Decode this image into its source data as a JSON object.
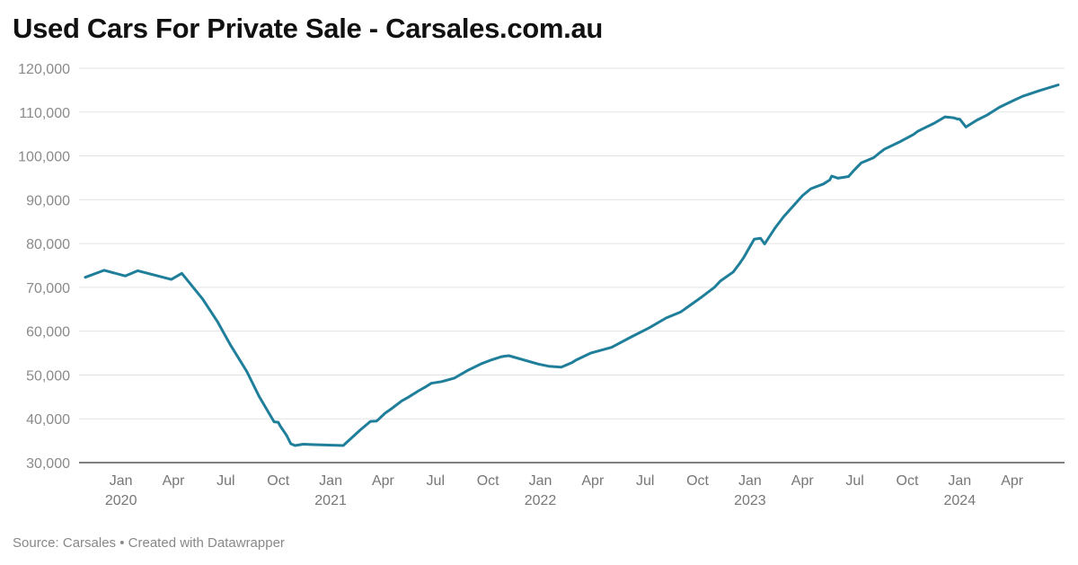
{
  "chart_data": {
    "type": "line",
    "title": "Used Cars For Private Sale - Carsales.com.au",
    "footer": {
      "source": "Source: Carsales",
      "separator": "•",
      "credit": "Created with Datawrapper"
    },
    "xlabel": "",
    "ylabel": "",
    "ylim": [
      30000,
      120000
    ],
    "xlim": [
      2019.8,
      2024.5
    ],
    "grid": true,
    "colors": {
      "series": "#1f7f9a",
      "grid": "#e3e3e3",
      "tick": "#8a8a8a"
    },
    "y_ticks": [
      {
        "value": 30000,
        "label": "30,000"
      },
      {
        "value": 40000,
        "label": "40,000"
      },
      {
        "value": 50000,
        "label": "50,000"
      },
      {
        "value": 60000,
        "label": "60,000"
      },
      {
        "value": 70000,
        "label": "70,000"
      },
      {
        "value": 80000,
        "label": "80,000"
      },
      {
        "value": 90000,
        "label": "90,000"
      },
      {
        "value": 100000,
        "label": "100,000"
      },
      {
        "value": 110000,
        "label": "110,000"
      },
      {
        "value": 120000,
        "label": "120,000"
      }
    ],
    "x_ticks": [
      {
        "value": 2020.0,
        "label": "Jan",
        "year": "2020"
      },
      {
        "value": 2020.25,
        "label": "Apr"
      },
      {
        "value": 2020.5,
        "label": "Jul"
      },
      {
        "value": 2020.75,
        "label": "Oct"
      },
      {
        "value": 2021.0,
        "label": "Jan",
        "year": "2021"
      },
      {
        "value": 2021.25,
        "label": "Apr"
      },
      {
        "value": 2021.5,
        "label": "Jul"
      },
      {
        "value": 2021.75,
        "label": "Oct"
      },
      {
        "value": 2022.0,
        "label": "Jan",
        "year": "2022"
      },
      {
        "value": 2022.25,
        "label": "Apr"
      },
      {
        "value": 2022.5,
        "label": "Jul"
      },
      {
        "value": 2022.75,
        "label": "Oct"
      },
      {
        "value": 2023.0,
        "label": "Jan",
        "year": "2023"
      },
      {
        "value": 2023.25,
        "label": "Apr"
      },
      {
        "value": 2023.5,
        "label": "Jul"
      },
      {
        "value": 2023.75,
        "label": "Oct"
      },
      {
        "value": 2024.0,
        "label": "Jan",
        "year": "2024"
      },
      {
        "value": 2024.25,
        "label": "Apr"
      }
    ],
    "series": [
      {
        "name": "Used cars for private sale",
        "x": [
          2019.83,
          2019.92,
          2020.02,
          2020.08,
          2020.24,
          2020.29,
          2020.39,
          2020.46,
          2020.52,
          2020.6,
          2020.66,
          2020.73,
          2020.75,
          2020.76,
          2020.79,
          2020.81,
          2020.83,
          2020.87,
          2020.92,
          2021.06,
          2021.14,
          2021.19,
          2021.22,
          2021.26,
          2021.29,
          2021.34,
          2021.37,
          2021.42,
          2021.45,
          2021.48,
          2021.53,
          2021.59,
          2021.66,
          2021.72,
          2021.77,
          2021.81,
          2021.83,
          2021.85,
          2021.99,
          2022.04,
          2022.1,
          2022.15,
          2022.17,
          2022.24,
          2022.34,
          2022.43,
          2022.52,
          2022.6,
          2022.67,
          2022.77,
          2022.83,
          2022.86,
          2022.92,
          2022.95,
          2022.97,
          2022.99,
          2023.02,
          2023.05,
          2023.07,
          2023.12,
          2023.16,
          2023.22,
          2023.25,
          2023.29,
          2023.35,
          2023.38,
          2023.39,
          2023.42,
          2023.47,
          2023.49,
          2023.53,
          2023.59,
          2023.61,
          2023.64,
          2023.71,
          2023.78,
          2023.8,
          2023.82,
          2023.88,
          2023.93,
          2023.97,
          2023.99,
          2024.0,
          2024.03,
          2024.08,
          2024.13,
          2024.19,
          2024.25,
          2024.3,
          2024.38,
          2024.47
        ],
        "values": [
          72300,
          73900,
          72600,
          73800,
          71800,
          73200,
          67300,
          62200,
          57000,
          50800,
          45000,
          39300,
          39200,
          38300,
          36200,
          34300,
          33900,
          34200,
          34100,
          33900,
          37400,
          39400,
          39500,
          41300,
          42300,
          44100,
          44900,
          46400,
          47200,
          48100,
          48500,
          49300,
          51200,
          52600,
          53500,
          54100,
          54300,
          54400,
          52500,
          52000,
          51800,
          52800,
          53400,
          55000,
          56300,
          58600,
          60800,
          63000,
          64400,
          67800,
          70000,
          71500,
          73500,
          75400,
          76800,
          78500,
          81000,
          81200,
          79900,
          83600,
          86100,
          89300,
          90900,
          92500,
          93600,
          94500,
          95400,
          94900,
          95300,
          96400,
          98400,
          99600,
          100400,
          101500,
          103100,
          104900,
          105600,
          106100,
          107500,
          108900,
          108700,
          108400,
          108400,
          106600,
          108100,
          109300,
          111100,
          112500,
          113600,
          114900,
          116200
        ]
      }
    ]
  }
}
